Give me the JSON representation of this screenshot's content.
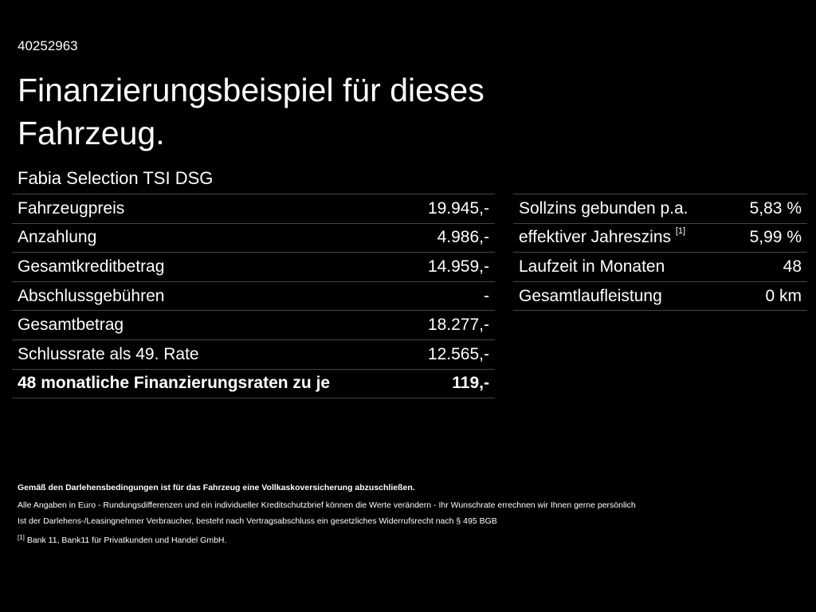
{
  "header": {
    "id": "40252963",
    "title_line1": "Finanzierungsbeispiel für dieses",
    "title_line2": "Fahrzeug.",
    "model": "Fabia Selection TSI DSG"
  },
  "left_table": {
    "rows": [
      [
        "Fahrzeugpreis",
        "19.945,-"
      ],
      [
        "Anzahlung",
        "4.986,-"
      ],
      [
        "Gesamtkreditbetrag",
        "14.959,-"
      ],
      [
        "Abschlussgebühren",
        "-"
      ],
      [
        "Gesamtbetrag",
        "18.277,-"
      ],
      [
        "Schlussrate als 49. Rate",
        "12.565,-"
      ],
      [
        "48 monatliche Finanzierungsraten zu je",
        "119,-"
      ]
    ]
  },
  "right_table": {
    "rows": [
      {
        "label": "Sollzins gebunden p.a.",
        "value": "5,83 %"
      },
      {
        "label": "effektiver Jahreszins",
        "note": "[1]",
        "value": "5,99 %"
      },
      {
        "label": "Laufzeit in Monaten",
        "value": "48"
      },
      {
        "label": "Gesamtlaufleistung",
        "value": "0 km"
      }
    ]
  },
  "footer": {
    "bold_note": "Gemäß den Darlehensbedingungen ist für das Fahrzeug eine Vollkaskoversicherung abzuschließen.",
    "line1": "Alle Angaben in Euro - Rundungsdifferenzen und ein individueller Kreditschutzbrief können die Werte verändern - Ihr Wunschrate errechnen wir Ihnen gerne persönlich",
    "line2": "Ist der Darlehens-/Leasingnehmer Verbraucher, besteht nach Vertragsabschluss ein gesetzliches Widerrufsrecht nach § 495 BGB",
    "footnote_mark": "[1]",
    "footnote_text": "Bank 11, Bank11 für Privatkunden und Handel GmbH."
  }
}
